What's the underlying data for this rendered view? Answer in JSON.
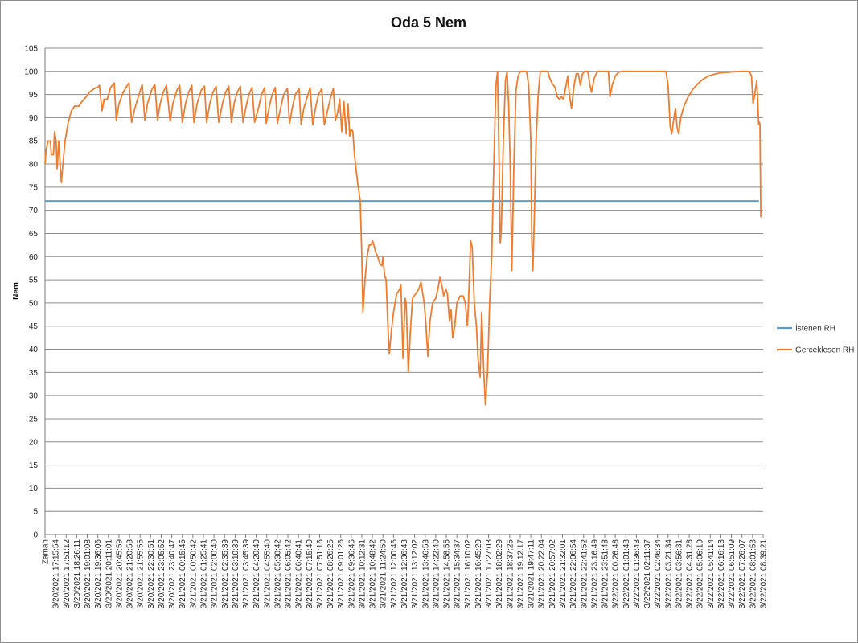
{
  "chart_data": {
    "type": "line",
    "title": "Oda 5 Nem",
    "ylabel": "Nem",
    "xlabel": "",
    "ylim": [
      0,
      105
    ],
    "ytick_step": 5,
    "grid": "horizontal",
    "legend_position": "right",
    "x_tick_labels": [
      "Zaman",
      "3/20/2021 17:15:54",
      "3/20/2021 17:51:12",
      "3/20/2021 18:26:11",
      "3/20/2021 19:01:08",
      "3/20/2021 19:36:06",
      "3/20/2021 20:11:01",
      "3/20/2021 20:45:59",
      "3/20/2021 21:20:58",
      "3/20/2021 21:55:55",
      "3/20/2021 22:30:51",
      "3/20/2021 23:05:52",
      "3/20/2021 23:40:47",
      "3/21/2021 00:15:45",
      "3/21/2021 00:50:42",
      "3/21/2021 01:25:41",
      "3/21/2021 02:00:40",
      "3/21/2021 02:35:39",
      "3/21/2021 03:10:39",
      "3/21/2021 03:45:39",
      "3/21/2021 04:20:40",
      "3/21/2021 04:55:40",
      "3/21/2021 05:30:42",
      "3/21/2021 06:05:42",
      "3/21/2021 06:40:41",
      "3/21/2021 07:15:40",
      "3/21/2021 07:51:16",
      "3/21/2021 08:26:25",
      "3/21/2021 09:01:26",
      "3/21/2021 09:36:46",
      "3/21/2021 10:12:31",
      "3/21/2021 10:48:42",
      "3/21/2021 11:24:50",
      "3/21/2021 12:00:46",
      "3/21/2021 12:36:43",
      "3/21/2021 13:12:02",
      "3/21/2021 13:46:53",
      "3/21/2021 14:22:40",
      "3/21/2021 14:58:55",
      "3/21/2021 15:34:37",
      "3/21/2021 16:10:02",
      "3/21/2021 16:45:20",
      "3/21/2021 17:27:03",
      "3/21/2021 18:02:29",
      "3/21/2021 18:37:25",
      "3/21/2021 19:12:17",
      "3/21/2021 19:47:11",
      "3/21/2021 20:22:04",
      "3/21/2021 20:57:02",
      "3/21/2021 21:32:01",
      "3/21/2021 22:06:54",
      "3/21/2021 22:41:52",
      "3/21/2021 23:16:49",
      "3/21/2021 23:51:48",
      "3/22/2021 00:26:48",
      "3/22/2021 01:01:48",
      "3/22/2021 01:36:43",
      "3/22/2021 02:11:37",
      "3/22/2021 02:46:34",
      "3/22/2021 03:21:34",
      "3/22/2021 03:56:31",
      "3/22/2021 04:31:28",
      "3/22/2021 05:06:19",
      "3/22/2021 05:41:14",
      "3/22/2021 06:16:13",
      "3/22/2021 06:51:09",
      "3/22/2021 07:26:07",
      "3/22/2021 08:01:53",
      "3/22/2021 08:39:21"
    ],
    "series": [
      {
        "name": "İstenen RH",
        "color": "#5b9bd5",
        "points": [
          [
            0,
            72
          ],
          [
            67.6,
            72
          ]
        ]
      },
      {
        "name": "Gerceklesen RH",
        "color": "#ed7d31",
        "points": [
          [
            0,
            80
          ],
          [
            0.1,
            83
          ],
          [
            0.3,
            85
          ],
          [
            0.5,
            85
          ],
          [
            0.6,
            82
          ],
          [
            0.8,
            82
          ],
          [
            0.9,
            87
          ],
          [
            1.05,
            85
          ],
          [
            1.15,
            79
          ],
          [
            1.3,
            85
          ],
          [
            1.45,
            79
          ],
          [
            1.55,
            76
          ],
          [
            1.65,
            79
          ],
          [
            1.9,
            85
          ],
          [
            2.2,
            89
          ],
          [
            2.5,
            91.5
          ],
          [
            2.8,
            92.5
          ],
          [
            3.2,
            92.5
          ],
          [
            3.5,
            93.5
          ],
          [
            3.9,
            94.5
          ],
          [
            4.2,
            95.5
          ],
          [
            4.5,
            96
          ],
          [
            4.8,
            96.5
          ],
          [
            5.0,
            96.5
          ],
          [
            5.15,
            97
          ],
          [
            5.4,
            91.5
          ],
          [
            5.6,
            94
          ],
          [
            5.9,
            94
          ],
          [
            6.2,
            96.5
          ],
          [
            6.55,
            97.5
          ],
          [
            6.75,
            89.5
          ],
          [
            7.0,
            93
          ],
          [
            7.4,
            95.5
          ],
          [
            7.8,
            97
          ],
          [
            7.95,
            97.5
          ],
          [
            8.2,
            89
          ],
          [
            8.5,
            92
          ],
          [
            8.9,
            95
          ],
          [
            9.2,
            97.2
          ],
          [
            9.45,
            89.5
          ],
          [
            9.7,
            93
          ],
          [
            10.1,
            96
          ],
          [
            10.4,
            97.2
          ],
          [
            10.65,
            89.5
          ],
          [
            10.9,
            93
          ],
          [
            11.2,
            95.5
          ],
          [
            11.5,
            97
          ],
          [
            11.85,
            89.2
          ],
          [
            12.1,
            93
          ],
          [
            12.5,
            96
          ],
          [
            12.75,
            97
          ],
          [
            13.0,
            89
          ],
          [
            13.3,
            93
          ],
          [
            13.6,
            95.5
          ],
          [
            13.9,
            97
          ],
          [
            14.1,
            89
          ],
          [
            14.4,
            93
          ],
          [
            14.8,
            96
          ],
          [
            15.1,
            96.8
          ],
          [
            15.3,
            89
          ],
          [
            15.6,
            93
          ],
          [
            15.9,
            95.5
          ],
          [
            16.2,
            96.8
          ],
          [
            16.45,
            89
          ],
          [
            16.8,
            93
          ],
          [
            17.1,
            95.5
          ],
          [
            17.4,
            96.8
          ],
          [
            17.65,
            89
          ],
          [
            17.9,
            93
          ],
          [
            18.2,
            95.5
          ],
          [
            18.5,
            96.8
          ],
          [
            18.75,
            89
          ],
          [
            19.0,
            92
          ],
          [
            19.3,
            95
          ],
          [
            19.6,
            96.5
          ],
          [
            19.85,
            89
          ],
          [
            20.2,
            92
          ],
          [
            20.5,
            95
          ],
          [
            20.8,
            96.5
          ],
          [
            20.95,
            88.8
          ],
          [
            21.2,
            92
          ],
          [
            21.5,
            95
          ],
          [
            21.8,
            96.5
          ],
          [
            22.0,
            88.8
          ],
          [
            22.3,
            92
          ],
          [
            22.6,
            95
          ],
          [
            22.95,
            96.3
          ],
          [
            23.15,
            88.8
          ],
          [
            23.4,
            92
          ],
          [
            23.7,
            95
          ],
          [
            24.05,
            96.3
          ],
          [
            24.25,
            88.5
          ],
          [
            24.5,
            92
          ],
          [
            24.9,
            95
          ],
          [
            25.1,
            96.5
          ],
          [
            25.35,
            88.5
          ],
          [
            25.6,
            92
          ],
          [
            25.9,
            95
          ],
          [
            26.2,
            96.3
          ],
          [
            26.45,
            88.5
          ],
          [
            26.7,
            91
          ],
          [
            27.0,
            94
          ],
          [
            27.3,
            96.3
          ],
          [
            27.5,
            89.5
          ],
          [
            27.7,
            91
          ],
          [
            27.9,
            94
          ],
          [
            28.1,
            87
          ],
          [
            28.3,
            93.5
          ],
          [
            28.5,
            86.5
          ],
          [
            28.7,
            93
          ],
          [
            28.85,
            86
          ],
          [
            29.0,
            87.5
          ],
          [
            29.15,
            87
          ],
          [
            29.3,
            82
          ],
          [
            29.6,
            76
          ],
          [
            29.85,
            72
          ],
          [
            30.0,
            60
          ],
          [
            30.1,
            48
          ],
          [
            30.3,
            55
          ],
          [
            30.5,
            60
          ],
          [
            30.7,
            62.5
          ],
          [
            30.9,
            62.5
          ],
          [
            31.0,
            63.5
          ],
          [
            31.15,
            62.5
          ],
          [
            31.3,
            61
          ],
          [
            31.5,
            60
          ],
          [
            31.7,
            58.5
          ],
          [
            31.9,
            58
          ],
          [
            32.0,
            60
          ],
          [
            32.15,
            56
          ],
          [
            32.3,
            55
          ],
          [
            32.45,
            46
          ],
          [
            32.6,
            39
          ],
          [
            32.8,
            44
          ],
          [
            33.0,
            48
          ],
          [
            33.3,
            52
          ],
          [
            33.6,
            53
          ],
          [
            33.7,
            54
          ],
          [
            33.9,
            38
          ],
          [
            34.1,
            51
          ],
          [
            34.2,
            50
          ],
          [
            34.4,
            35
          ],
          [
            34.6,
            44
          ],
          [
            34.8,
            51
          ],
          [
            35.1,
            52
          ],
          [
            35.4,
            53
          ],
          [
            35.6,
            54.5
          ],
          [
            35.9,
            50
          ],
          [
            36.05,
            46
          ],
          [
            36.25,
            38.5
          ],
          [
            36.45,
            46
          ],
          [
            36.7,
            50
          ],
          [
            37.0,
            51
          ],
          [
            37.2,
            53
          ],
          [
            37.4,
            55.5
          ],
          [
            37.6,
            53.5
          ],
          [
            37.75,
            51.5
          ],
          [
            37.95,
            53
          ],
          [
            38.1,
            52
          ],
          [
            38.3,
            46
          ],
          [
            38.45,
            48.5
          ],
          [
            38.6,
            42.5
          ],
          [
            38.8,
            45
          ],
          [
            39.0,
            50
          ],
          [
            39.3,
            51.5
          ],
          [
            39.6,
            51.5
          ],
          [
            39.8,
            50
          ],
          [
            40.0,
            45
          ],
          [
            40.1,
            50
          ],
          [
            40.3,
            63.5
          ],
          [
            40.45,
            62
          ],
          [
            40.65,
            50
          ],
          [
            40.85,
            45
          ],
          [
            41.0,
            38
          ],
          [
            41.2,
            34
          ],
          [
            41.35,
            48
          ],
          [
            41.55,
            35
          ],
          [
            41.7,
            28
          ],
          [
            41.9,
            35
          ],
          [
            42.1,
            50
          ],
          [
            42.3,
            60
          ],
          [
            42.5,
            80
          ],
          [
            42.7,
            97
          ],
          [
            42.85,
            100
          ],
          [
            43.0,
            80
          ],
          [
            43.1,
            63
          ],
          [
            43.2,
            65
          ],
          [
            43.4,
            85
          ],
          [
            43.6,
            98
          ],
          [
            43.75,
            100
          ],
          [
            43.9,
            93
          ],
          [
            44.05,
            80
          ],
          [
            44.2,
            57
          ],
          [
            44.4,
            80
          ],
          [
            44.6,
            96
          ],
          [
            44.8,
            99
          ],
          [
            45.0,
            100
          ],
          [
            45.3,
            100
          ],
          [
            45.6,
            100
          ],
          [
            45.8,
            97
          ],
          [
            46.0,
            85
          ],
          [
            46.1,
            63
          ],
          [
            46.2,
            57
          ],
          [
            46.35,
            70
          ],
          [
            46.5,
            85
          ],
          [
            46.7,
            95
          ],
          [
            46.9,
            100
          ],
          [
            47.3,
            100
          ],
          [
            47.6,
            100
          ],
          [
            47.8,
            98.5
          ],
          [
            48.0,
            97.5
          ],
          [
            48.3,
            96.5
          ],
          [
            48.5,
            94.5
          ],
          [
            48.7,
            94
          ],
          [
            48.9,
            94.5
          ],
          [
            49.1,
            94
          ],
          [
            49.3,
            96.5
          ],
          [
            49.5,
            99
          ],
          [
            49.65,
            95
          ],
          [
            49.85,
            92
          ],
          [
            50.1,
            97
          ],
          [
            50.3,
            99.5
          ],
          [
            50.5,
            99.5
          ],
          [
            50.7,
            97
          ],
          [
            50.9,
            99.5
          ],
          [
            51.1,
            100
          ],
          [
            51.4,
            100
          ],
          [
            51.6,
            97
          ],
          [
            51.75,
            95.5
          ],
          [
            52.0,
            98.5
          ],
          [
            52.3,
            100
          ],
          [
            52.7,
            100
          ],
          [
            53.1,
            100
          ],
          [
            53.35,
            100
          ],
          [
            53.5,
            94.5
          ],
          [
            53.7,
            97
          ],
          [
            54.0,
            99
          ],
          [
            54.3,
            99.8
          ],
          [
            54.6,
            100
          ],
          [
            55.0,
            100
          ],
          [
            56.0,
            100
          ],
          [
            57.0,
            100
          ],
          [
            58.0,
            100
          ],
          [
            58.8,
            100
          ],
          [
            59.0,
            97
          ],
          [
            59.2,
            88
          ],
          [
            59.35,
            86.5
          ],
          [
            59.55,
            90
          ],
          [
            59.7,
            92
          ],
          [
            59.85,
            88
          ],
          [
            60.0,
            86.5
          ],
          [
            60.2,
            90
          ],
          [
            60.5,
            92.5
          ],
          [
            60.9,
            94.5
          ],
          [
            61.3,
            96
          ],
          [
            61.8,
            97.3
          ],
          [
            62.3,
            98.3
          ],
          [
            62.8,
            99
          ],
          [
            63.4,
            99.4
          ],
          [
            64.0,
            99.7
          ],
          [
            64.6,
            99.8
          ],
          [
            65.2,
            99.9
          ],
          [
            65.8,
            100
          ],
          [
            66.3,
            100
          ],
          [
            66.7,
            100
          ],
          [
            66.9,
            99
          ],
          [
            67.05,
            93
          ],
          [
            67.2,
            95
          ],
          [
            67.4,
            98
          ],
          [
            67.5,
            93
          ],
          [
            67.58,
            88.5
          ],
          [
            67.65,
            89
          ],
          [
            67.7,
            88.5
          ],
          [
            67.78,
            68.5
          ]
        ]
      }
    ]
  }
}
